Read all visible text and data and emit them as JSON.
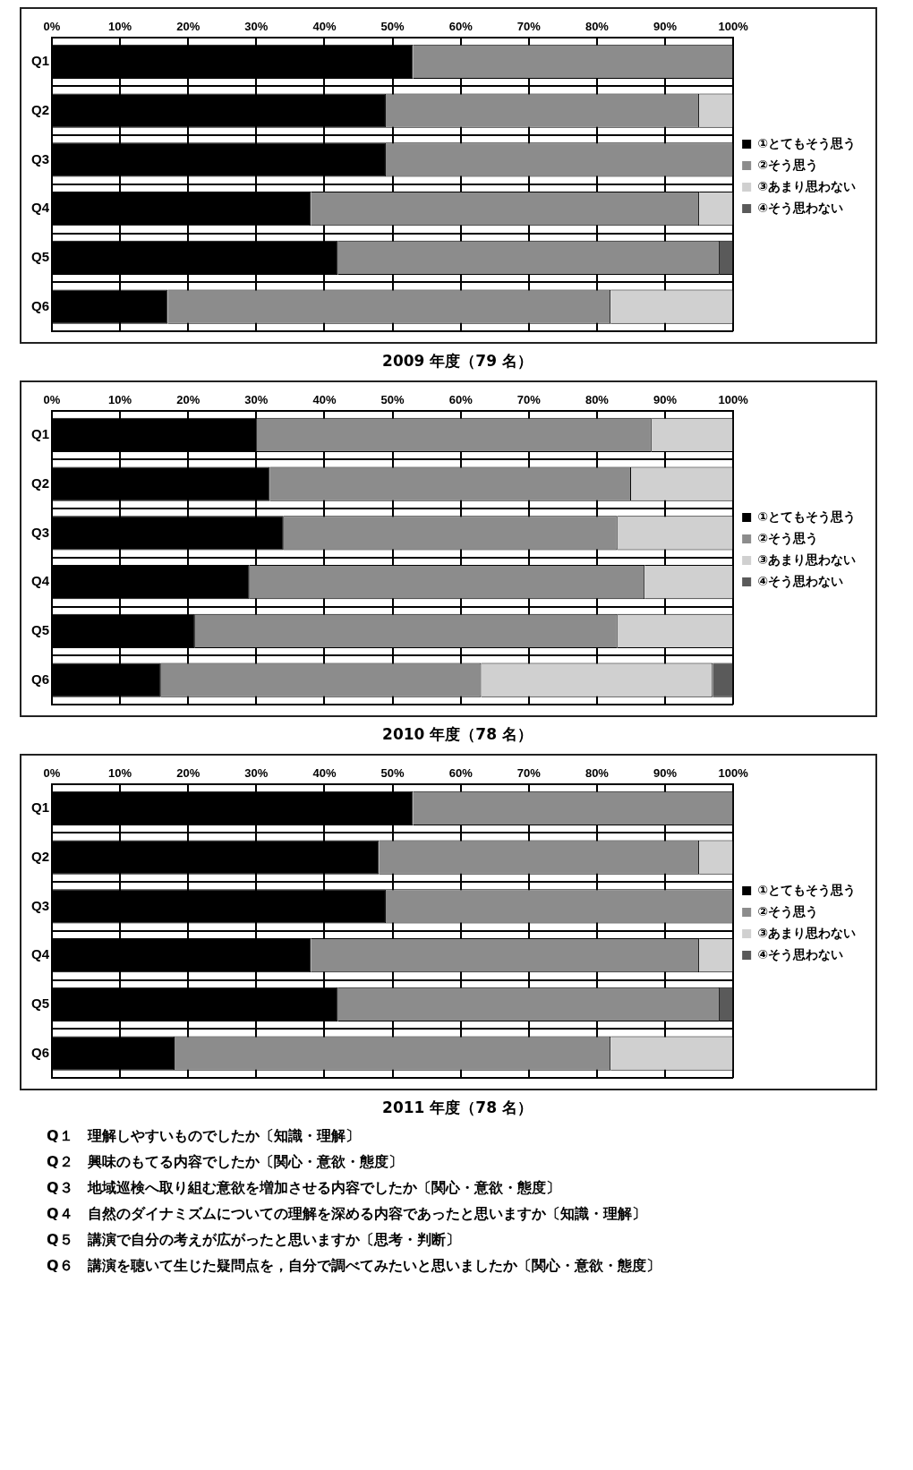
{
  "chart_data": [
    {
      "type": "bar",
      "orientation": "horizontal",
      "stacked": true,
      "title": "2009 年度（79 名）",
      "categories": [
        "Q1",
        "Q2",
        "Q3",
        "Q4",
        "Q5",
        "Q6"
      ],
      "xlim": [
        0,
        100
      ],
      "xticks": [
        {
          "value": 0,
          "label": "0%"
        },
        {
          "value": 10,
          "label": "10%"
        },
        {
          "value": 20,
          "label": "20%"
        },
        {
          "value": 30,
          "label": "30%"
        },
        {
          "value": 40,
          "label": "40%"
        },
        {
          "value": 50,
          "label": "50%"
        },
        {
          "value": 60,
          "label": "60%"
        },
        {
          "value": 70,
          "label": "70%"
        },
        {
          "value": 80,
          "label": "80%"
        },
        {
          "value": 90,
          "label": "90%"
        },
        {
          "value": 100,
          "label": "100%"
        }
      ],
      "grid": true,
      "legend": "right",
      "series": [
        {
          "name": "①とてもそう思う",
          "color": "#000000",
          "values": [
            53,
            49,
            49,
            38,
            42,
            17
          ]
        },
        {
          "name": "②そう思う",
          "color": "#8c8c8c",
          "values": [
            47,
            46,
            51,
            57,
            56,
            65
          ]
        },
        {
          "name": "③あまり思わない",
          "color": "#d0d0d0",
          "values": [
            0,
            5,
            0,
            5,
            0,
            18
          ]
        },
        {
          "name": "④そう思わない",
          "color": "#5a5a5a",
          "values": [
            0,
            0,
            0,
            0,
            2,
            0
          ]
        }
      ]
    },
    {
      "type": "bar",
      "orientation": "horizontal",
      "stacked": true,
      "title": "2010 年度（78 名）",
      "categories": [
        "Q1",
        "Q2",
        "Q3",
        "Q4",
        "Q5",
        "Q6"
      ],
      "xlim": [
        0,
        100
      ],
      "xticks": [
        {
          "value": 0,
          "label": "0%"
        },
        {
          "value": 10,
          "label": "10%"
        },
        {
          "value": 20,
          "label": "20%"
        },
        {
          "value": 30,
          "label": "30%"
        },
        {
          "value": 40,
          "label": "40%"
        },
        {
          "value": 50,
          "label": "50%"
        },
        {
          "value": 60,
          "label": "60%"
        },
        {
          "value": 70,
          "label": "70%"
        },
        {
          "value": 80,
          "label": "80%"
        },
        {
          "value": 90,
          "label": "90%"
        },
        {
          "value": 100,
          "label": "100%"
        }
      ],
      "grid": true,
      "legend": "right",
      "series": [
        {
          "name": "①とてもそう思う",
          "color": "#000000",
          "values": [
            30,
            32,
            34,
            29,
            21,
            16
          ]
        },
        {
          "name": "②そう思う",
          "color": "#8c8c8c",
          "values": [
            58,
            53,
            49,
            58,
            62,
            47
          ]
        },
        {
          "name": "③あまり思わない",
          "color": "#d0d0d0",
          "values": [
            12,
            15,
            17,
            13,
            17,
            34
          ]
        },
        {
          "name": "④そう思わない",
          "color": "#5a5a5a",
          "values": [
            0,
            0,
            0,
            0,
            0,
            3
          ]
        }
      ]
    },
    {
      "type": "bar",
      "orientation": "horizontal",
      "stacked": true,
      "title": "2011 年度（78 名）",
      "categories": [
        "Q1",
        "Q2",
        "Q3",
        "Q4",
        "Q5",
        "Q6"
      ],
      "xlim": [
        0,
        100
      ],
      "xticks": [
        {
          "value": 0,
          "label": "0%"
        },
        {
          "value": 10,
          "label": "10%"
        },
        {
          "value": 20,
          "label": "20%"
        },
        {
          "value": 30,
          "label": "30%"
        },
        {
          "value": 40,
          "label": "40%"
        },
        {
          "value": 50,
          "label": "50%"
        },
        {
          "value": 60,
          "label": "60%"
        },
        {
          "value": 70,
          "label": "70%"
        },
        {
          "value": 80,
          "label": "80%"
        },
        {
          "value": 90,
          "label": "90%"
        },
        {
          "value": 100,
          "label": "100%"
        }
      ],
      "grid": true,
      "legend": "right",
      "series": [
        {
          "name": "①とてもそう思う",
          "color": "#000000",
          "values": [
            53,
            48,
            49,
            38,
            42,
            18
          ]
        },
        {
          "name": "②そう思う",
          "color": "#8c8c8c",
          "values": [
            47,
            47,
            51,
            57,
            56,
            64
          ]
        },
        {
          "name": "③あまり思わない",
          "color": "#d0d0d0",
          "values": [
            0,
            5,
            0,
            5,
            0,
            18
          ]
        },
        {
          "name": "④そう思わない",
          "color": "#5a5a5a",
          "values": [
            0,
            0,
            0,
            0,
            2,
            0
          ]
        }
      ],
      "annotations": [
        "Q１　理解しやすいものでしたか〔知識・理解〕",
        "Q２　興味のもてる内容でしたか〔関心・意欲・態度〕",
        "Q３　地域巡検へ取り組む意欲を増加させる内容でしたか〔関心・意欲・態度〕",
        "Q４　自然のダイナミズムについての理解を深める内容であったと思いますか〔知識・理解〕",
        "Q５　講演で自分の考えが広がったと思いますか〔思考・判断〕",
        "Q６　講演を聴いて生じた疑問点を，自分で調べてみたいと思いましたか〔関心・意欲・態度〕"
      ]
    }
  ]
}
